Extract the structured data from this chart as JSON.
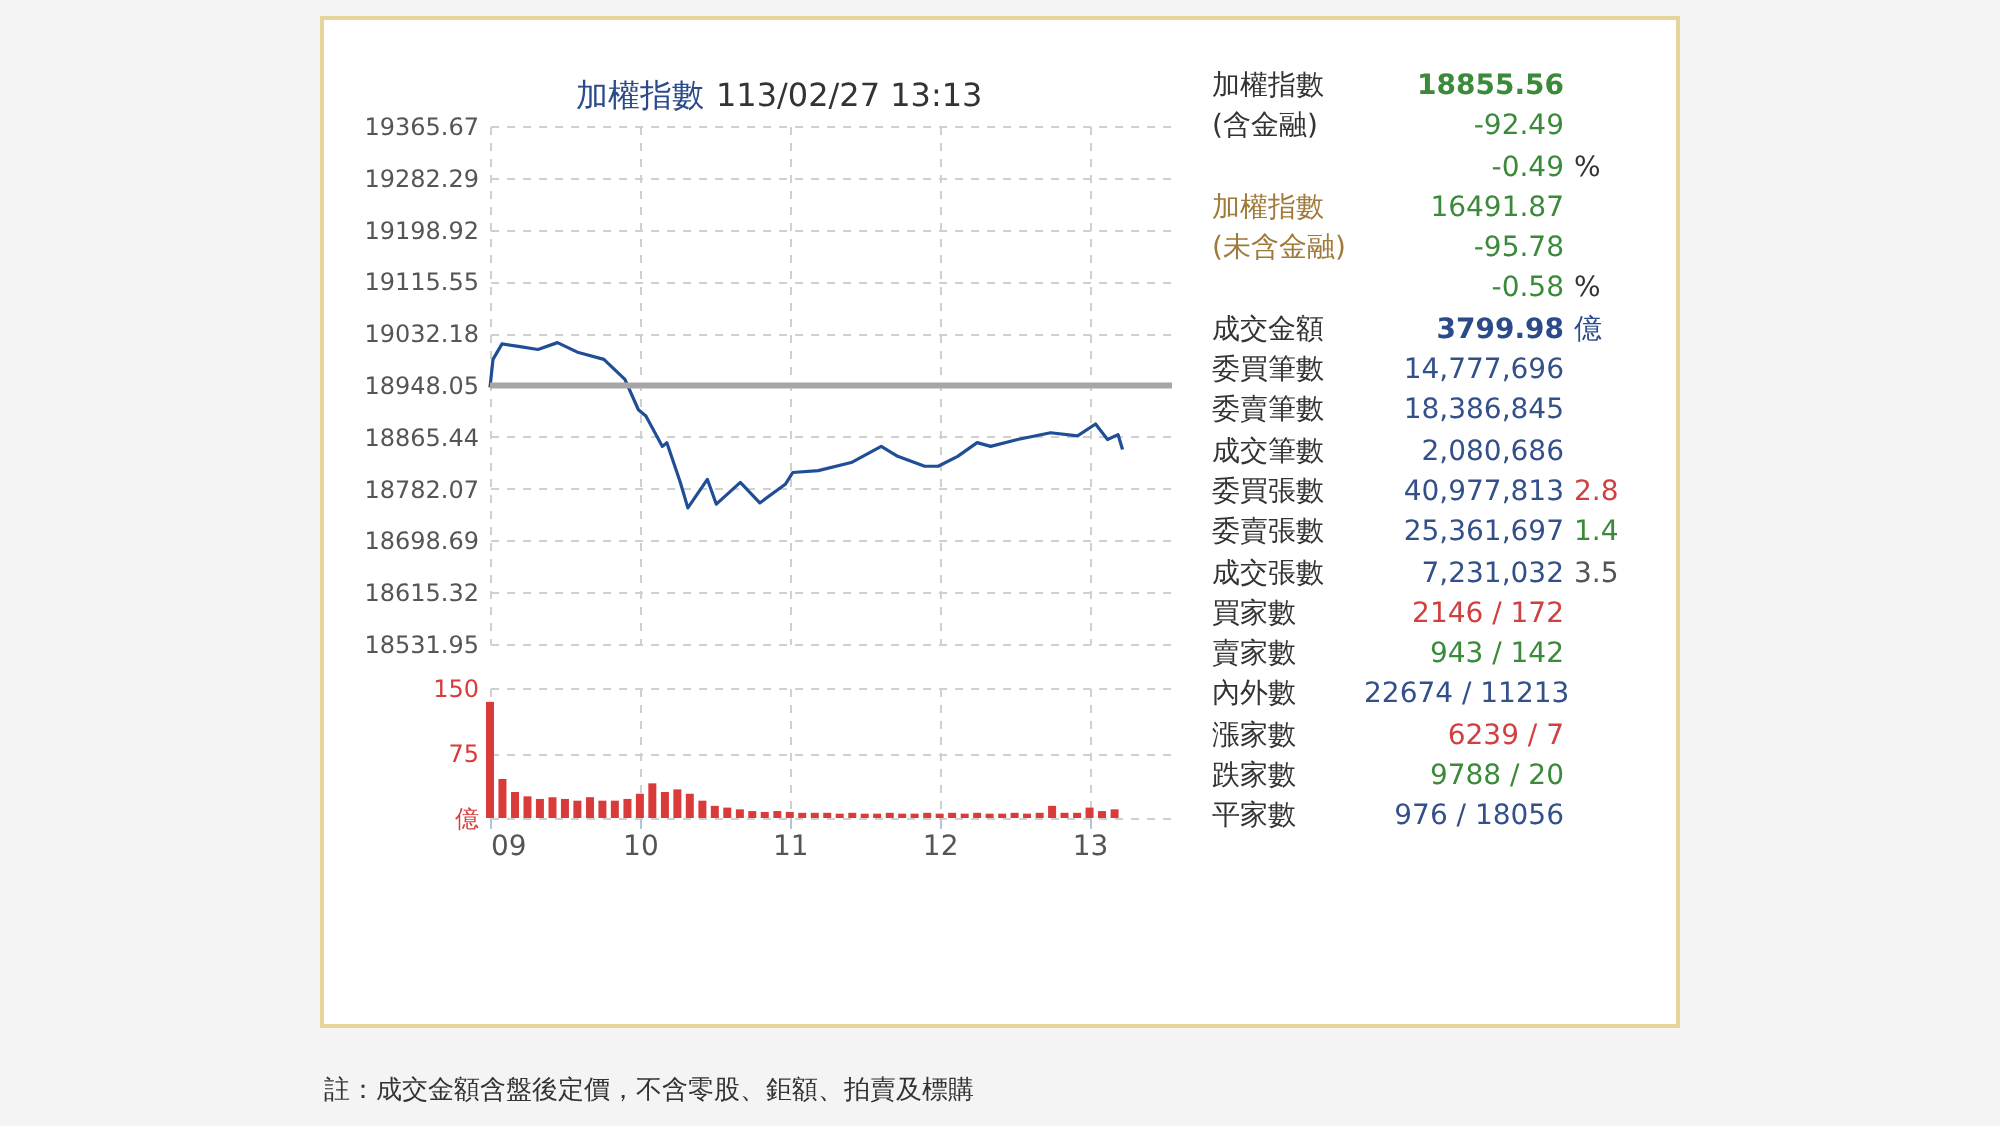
{
  "chart_data": [
    {
      "type": "line",
      "title": "加權指數",
      "subtitle": "113/02/27 13:13",
      "annotations": [
        "註：成交金額含盤後定價，不含零股、鉅額、拍賣及標購"
      ],
      "x": [
        9.0,
        9.02,
        9.08,
        9.19,
        9.32,
        9.45,
        9.59,
        9.76,
        9.9,
        9.99,
        10.04,
        10.15,
        10.18,
        10.27,
        10.32,
        10.45,
        10.51,
        10.67,
        10.8,
        10.97,
        11.02,
        11.19,
        11.41,
        11.61,
        11.72,
        11.9,
        11.99,
        12.12,
        12.25,
        12.34,
        12.52,
        12.74,
        12.92,
        13.04,
        13.12,
        13.19,
        13.22
      ],
      "series": [
        {
          "color": "#1f4e96",
          "values": [
            18945,
            18990,
            19015,
            19011,
            19006,
            19017,
            19001,
            18990,
            18958,
            18909,
            18899,
            18850,
            18856,
            18792,
            18751,
            18797,
            18757,
            18792,
            18759,
            18789,
            18808,
            18811,
            18824,
            18850,
            18834,
            18818,
            18818,
            18834,
            18856,
            18850,
            18861,
            18872,
            18867,
            18886,
            18861,
            18869,
            18845
          ]
        }
      ],
      "xlim": [
        9,
        13.55
      ],
      "xticks": [
        9,
        10,
        11,
        12,
        13
      ],
      "ylim": [
        18531.95,
        19365.67
      ],
      "yticks": [
        18531.95,
        18615.32,
        18698.69,
        18782.07,
        18865.44,
        18948.05,
        19032.18,
        19115.55,
        19198.92,
        19282.29,
        19365.67
      ],
      "ref_lines": [
        {
          "axis": "y",
          "value": 18948.05,
          "color": "#a6a6a6"
        }
      ],
      "grid": true,
      "tick_labels": "y"
    },
    {
      "type": "bar",
      "color": "#d93a3a",
      "x": [
        9.0,
        9.083,
        9.167,
        9.25,
        9.333,
        9.417,
        9.5,
        9.583,
        9.667,
        9.75,
        9.833,
        9.917,
        10.0,
        10.083,
        10.167,
        10.25,
        10.333,
        10.417,
        10.5,
        10.583,
        10.667,
        10.75,
        10.833,
        10.917,
        11.0,
        11.083,
        11.167,
        11.25,
        11.333,
        11.417,
        11.5,
        11.583,
        11.667,
        11.75,
        11.833,
        11.917,
        12.0,
        12.083,
        12.167,
        12.25,
        12.333,
        12.417,
        12.5,
        12.583,
        12.667,
        12.75,
        12.833,
        12.917,
        13.0,
        13.083,
        13.167
      ],
      "values": [
        134,
        45,
        30,
        25,
        22,
        24,
        22,
        20,
        24,
        20,
        20,
        22,
        28,
        40,
        30,
        33,
        28,
        20,
        14,
        12,
        10,
        8,
        7,
        8,
        7,
        6,
        6,
        6,
        5,
        6,
        5,
        5,
        6,
        5,
        5,
        6,
        5,
        6,
        5,
        6,
        5,
        5,
        6,
        5,
        6,
        14,
        6,
        6,
        12,
        8,
        10
      ],
      "xlim": [
        9,
        13.55
      ],
      "xticks": [
        {
          "value": 9,
          "label": "09"
        },
        {
          "value": 10,
          "label": "10"
        },
        {
          "value": 11,
          "label": "11"
        },
        {
          "value": 12,
          "label": "12"
        },
        {
          "value": 13,
          "label": "13"
        }
      ],
      "ylim": [
        0,
        150
      ],
      "yticks": [
        {
          "value": 0,
          "label": "億"
        },
        75,
        150
      ],
      "grid": true
    },
    {
      "type": "other",
      "annotations": [
        "加權指數",
        "18855.56",
        "(含金融)",
        "-92.49",
        "-0.49",
        "%",
        "加權指數",
        "16491.87",
        "(未含金融)",
        "-95.78",
        "-0.58",
        "%",
        "成交金額",
        "3799.98",
        "億",
        "委買筆數",
        "14,777,696",
        "委賣筆數",
        "18,386,845",
        "成交筆數",
        "2,080,686",
        "委買張數",
        "40,977,813",
        "2.8",
        "委賣張數",
        "25,361,697",
        "1.4",
        "成交張數",
        "7,231,032",
        "3.5",
        "買家數",
        "2146 / 172",
        "賣家數",
        "943 / 142",
        "內外數",
        "22674 / 11213",
        "漲家數",
        "6239 / 7",
        "跌家數",
        "9788 / 20",
        "平家數",
        "976 / 18056"
      ],
      "colors": [
        "#333333",
        "#3a8a3a",
        "#333333",
        "#3a8a3a",
        "#3a8a3a",
        "#333333",
        "#a07a3a",
        "#3a8a3a",
        "#a07a3a",
        "#3a8a3a",
        "#3a8a3a",
        "#333333",
        "#333333",
        "#2a4a8a",
        "#2a4a8a",
        "#333333",
        "#34508a",
        "#333333",
        "#34508a",
        "#333333",
        "#34508a",
        "#333333",
        "#34508a",
        "#d04040",
        "#333333",
        "#34508a",
        "#3a8a3a",
        "#333333",
        "#34508a",
        "#555555",
        "#333333",
        "#d04040",
        "#333333",
        "#3a8a3a",
        "#333333",
        "#34508a",
        "#333333",
        "#d04040",
        "#333333",
        "#3a8a3a",
        "#333333",
        "#34508a"
      ]
    }
  ]
}
